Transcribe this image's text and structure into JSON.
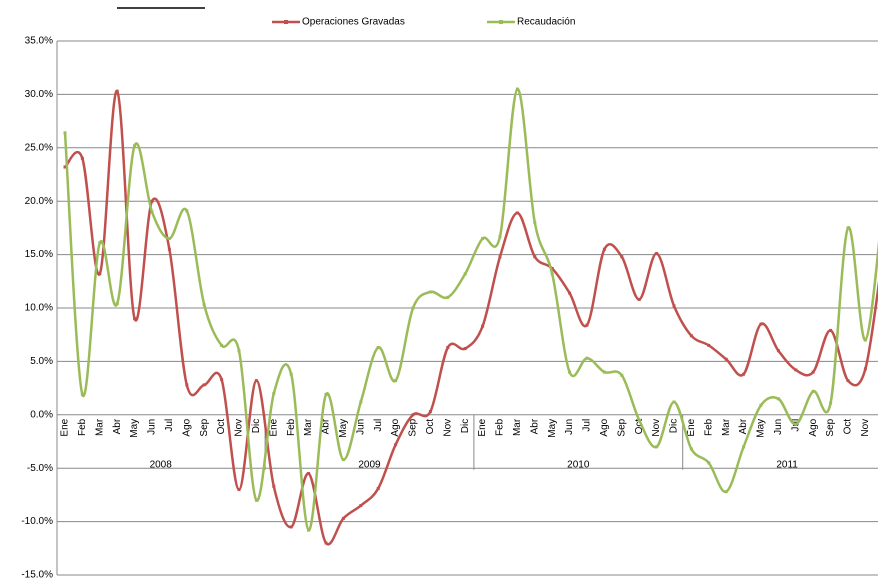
{
  "chart_data": {
    "type": "line",
    "categories": [
      "Ene",
      "Feb",
      "Mar",
      "Abr",
      "May",
      "Jun",
      "Jul",
      "Ago",
      "Sep",
      "Oct",
      "Nov",
      "Dic",
      "Ene",
      "Feb",
      "Mar",
      "Abr",
      "May",
      "Jun",
      "Jul",
      "Ago",
      "Sep",
      "Oct",
      "Nov",
      "Dic",
      "Ene",
      "Feb",
      "Mar",
      "Abr",
      "May",
      "Jun",
      "Jul",
      "Ago",
      "Sep",
      "Oct",
      "Nov",
      "Dic",
      "Ene",
      "Feb",
      "Mar",
      "Abr",
      "May",
      "Jun",
      "Jul",
      "Ago",
      "Sep",
      "Oct",
      "Nov",
      null
    ],
    "year_labels": [
      "2008",
      "2009",
      "2010",
      "2011"
    ],
    "series": [
      {
        "name": "Operaciones Gravadas",
        "color": "#c0504d",
        "values": [
          23.2,
          24.0,
          13.2,
          30.3,
          9.0,
          20.0,
          15.5,
          2.8,
          2.8,
          3.3,
          -7.0,
          3.2,
          -6.7,
          -10.5,
          -5.5,
          -12.0,
          -9.7,
          -8.5,
          -6.9,
          -2.8,
          0.0,
          0.3,
          6.3,
          6.2,
          8.3,
          14.8,
          18.9,
          14.8,
          13.7,
          11.4,
          8.4,
          15.5,
          14.8,
          10.8,
          15.1,
          10.2,
          7.4,
          6.5,
          5.2,
          3.8,
          8.5,
          6.0,
          4.2,
          4.0,
          7.9,
          3.2,
          4.3,
          15.0
        ]
      },
      {
        "name": "Recaudación",
        "color": "#9bbb59",
        "values": [
          26.4,
          1.9,
          16.1,
          10.4,
          25.2,
          19.0,
          16.5,
          19.1,
          10.3,
          6.5,
          6.0,
          -8.0,
          2.0,
          3.8,
          -10.8,
          1.9,
          -4.2,
          1.2,
          6.3,
          3.2,
          10.0,
          11.5,
          11.0,
          13.2,
          16.5,
          16.7,
          30.5,
          18.0,
          13.2,
          4.0,
          5.3,
          4.0,
          3.7,
          -0.5,
          -3.0,
          1.2,
          -3.2,
          -4.5,
          -7.2,
          -3.0,
          0.9,
          1.5,
          -0.9,
          2.2,
          1.1,
          17.5,
          7.0,
          19.5
        ]
      }
    ],
    "ylim": [
      -15,
      35
    ],
    "yticks": [
      {
        "value": -15,
        "label": "-15.0%"
      },
      {
        "value": -10,
        "label": "-10.0%"
      },
      {
        "value": -5,
        "label": "-5.0%"
      },
      {
        "value": 0,
        "label": "0.0%"
      },
      {
        "value": 5,
        "label": "5.0%"
      },
      {
        "value": 10,
        "label": "10.0%"
      },
      {
        "value": 15,
        "label": "15.0%"
      },
      {
        "value": 20,
        "label": "20.0%"
      },
      {
        "value": 25,
        "label": "25.0%"
      },
      {
        "value": 30,
        "label": "30.0%"
      },
      {
        "value": 35,
        "label": "35.0%"
      }
    ],
    "grid": true,
    "legend": "top"
  }
}
